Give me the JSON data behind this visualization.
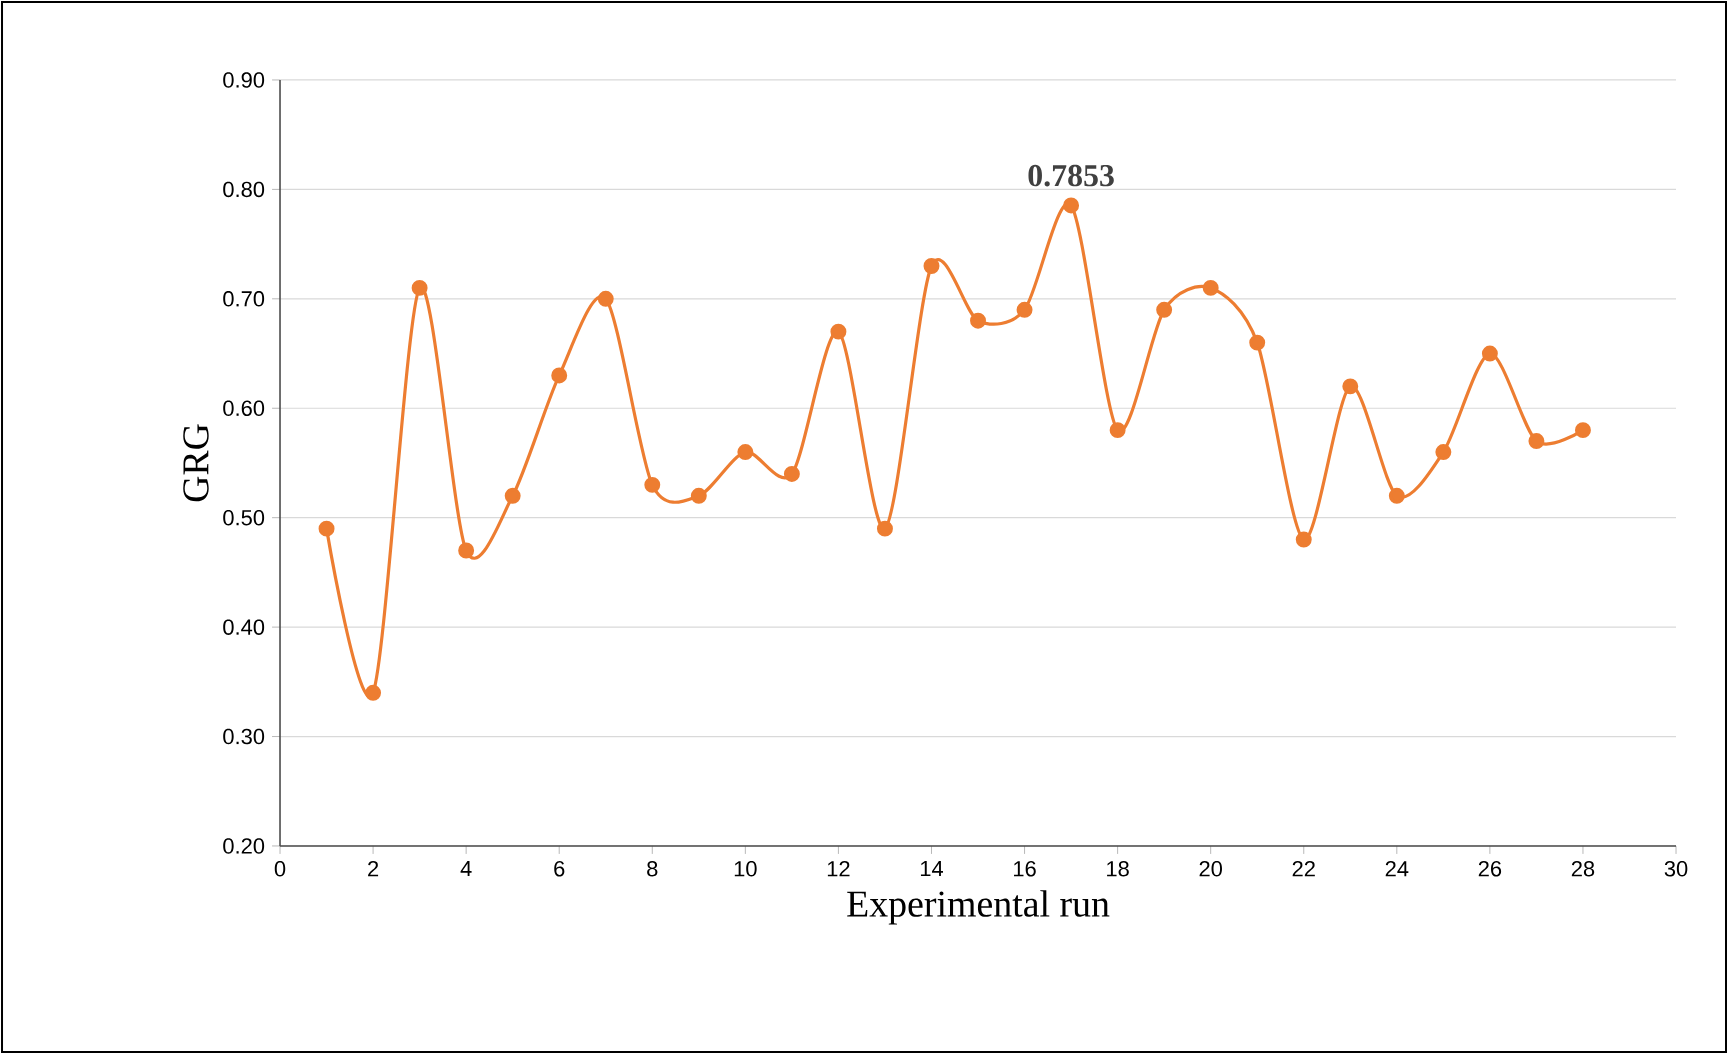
{
  "chart_data": {
    "type": "line",
    "xlabel": "Experimental run",
    "ylabel": "GRG",
    "x": [
      1,
      2,
      3,
      4,
      5,
      6,
      7,
      8,
      9,
      10,
      11,
      12,
      13,
      14,
      15,
      16,
      17,
      18,
      19,
      20,
      21,
      22,
      23,
      24,
      25,
      26,
      27,
      28
    ],
    "series": [
      {
        "color": "#ed7d31",
        "values": [
          0.49,
          0.34,
          0.71,
          0.47,
          0.52,
          0.63,
          0.7,
          0.53,
          0.52,
          0.56,
          0.54,
          0.67,
          0.49,
          0.73,
          0.68,
          0.69,
          0.7853,
          0.58,
          0.69,
          0.71,
          0.66,
          0.48,
          0.62,
          0.52,
          0.56,
          0.65,
          0.57,
          0.58
        ]
      }
    ],
    "xlim": [
      0,
      30
    ],
    "xticks": [
      0,
      2,
      4,
      6,
      8,
      10,
      12,
      14,
      16,
      18,
      20,
      22,
      24,
      26,
      28,
      30
    ],
    "ylim": [
      0.2,
      0.9
    ],
    "yticks": [
      {
        "value": 0.2,
        "label": "0.20"
      },
      {
        "value": 0.3,
        "label": "0.30"
      },
      {
        "value": 0.4,
        "label": "0.40"
      },
      {
        "value": 0.5,
        "label": "0.50"
      },
      {
        "value": 0.6,
        "label": "0.60"
      },
      {
        "value": 0.7,
        "label": "0.70"
      },
      {
        "value": 0.8,
        "label": "0.80"
      },
      {
        "value": 0.9,
        "label": "0.90"
      }
    ],
    "annotations": [
      {
        "text": "0.7853",
        "x": 17,
        "y": 0.7853
      }
    ],
    "grid": "y",
    "marker": "circle",
    "line_style": "solid"
  }
}
